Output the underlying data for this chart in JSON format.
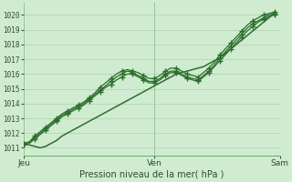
{
  "xlabel": "Pression niveau de la mer( hPa )",
  "bg_color": "#d0ecd0",
  "grid_color": "#b0d0b0",
  "line_color": "#2d6e2d",
  "ylim": [
    1010.5,
    1020.8
  ],
  "xlim": [
    0,
    47
  ],
  "yticks": [
    1011,
    1012,
    1013,
    1014,
    1015,
    1016,
    1017,
    1018,
    1019,
    1020
  ],
  "xtick_labels": [
    "Jeu",
    "Ven",
    "Sam"
  ],
  "xtick_positions": [
    0,
    24,
    47
  ],
  "series_marked": [
    [
      1011.3,
      1011.4,
      1011.8,
      1012.1,
      1012.4,
      1012.7,
      1013.0,
      1013.3,
      1013.5,
      1013.7,
      1013.9,
      1014.1,
      1014.4,
      1014.7,
      1015.1,
      1015.4,
      1015.7,
      1016.0,
      1016.2,
      1016.3,
      1016.2,
      1016.1,
      1015.9,
      1015.7,
      1015.7,
      1015.9,
      1016.2,
      1016.4,
      1016.4,
      1016.2,
      1016.0,
      1015.9,
      1015.8,
      1016.1,
      1016.4,
      1016.8,
      1017.3,
      1017.7,
      1018.1,
      1018.5,
      1018.9,
      1019.3,
      1019.6,
      1019.8,
      1020.0,
      1020.1,
      1020.2
    ],
    [
      1011.3,
      1011.4,
      1011.7,
      1012.0,
      1012.3,
      1012.6,
      1012.9,
      1013.2,
      1013.4,
      1013.6,
      1013.8,
      1014.0,
      1014.3,
      1014.6,
      1014.9,
      1015.2,
      1015.5,
      1015.8,
      1016.0,
      1016.2,
      1016.1,
      1015.9,
      1015.7,
      1015.5,
      1015.5,
      1015.7,
      1016.0,
      1016.2,
      1016.2,
      1016.0,
      1015.8,
      1015.7,
      1015.6,
      1015.9,
      1016.2,
      1016.6,
      1017.1,
      1017.5,
      1017.9,
      1018.3,
      1018.7,
      1019.1,
      1019.4,
      1019.6,
      1019.8,
      1020.0,
      1020.1
    ],
    [
      1011.2,
      1011.3,
      1011.6,
      1011.9,
      1012.2,
      1012.5,
      1012.8,
      1013.1,
      1013.3,
      1013.5,
      1013.7,
      1013.9,
      1014.2,
      1014.5,
      1014.8,
      1015.1,
      1015.3,
      1015.6,
      1015.8,
      1016.0,
      1016.0,
      1015.8,
      1015.6,
      1015.4,
      1015.4,
      1015.6,
      1015.9,
      1016.1,
      1016.1,
      1015.9,
      1015.7,
      1015.6,
      1015.5,
      1015.8,
      1016.1,
      1016.5,
      1016.9,
      1017.3,
      1017.7,
      1018.1,
      1018.5,
      1018.9,
      1019.2,
      1019.5,
      1019.7,
      1019.9,
      1020.0
    ]
  ],
  "series_plain": [
    1011.3,
    1011.2,
    1011.1,
    1011.0,
    1011.1,
    1011.3,
    1011.5,
    1011.8,
    1012.0,
    1012.2,
    1012.4,
    1012.6,
    1012.8,
    1013.0,
    1013.2,
    1013.4,
    1013.6,
    1013.8,
    1014.0,
    1014.2,
    1014.4,
    1014.6,
    1014.8,
    1015.0,
    1015.2,
    1015.4,
    1015.6,
    1015.8,
    1016.0,
    1016.1,
    1016.2,
    1016.3,
    1016.4,
    1016.5,
    1016.7,
    1016.9,
    1017.1,
    1017.4,
    1017.7,
    1018.0,
    1018.3,
    1018.6,
    1018.9,
    1019.2,
    1019.5,
    1019.8,
    1020.1
  ],
  "marker": "+",
  "marker_size": 5,
  "marker_interval": 2
}
